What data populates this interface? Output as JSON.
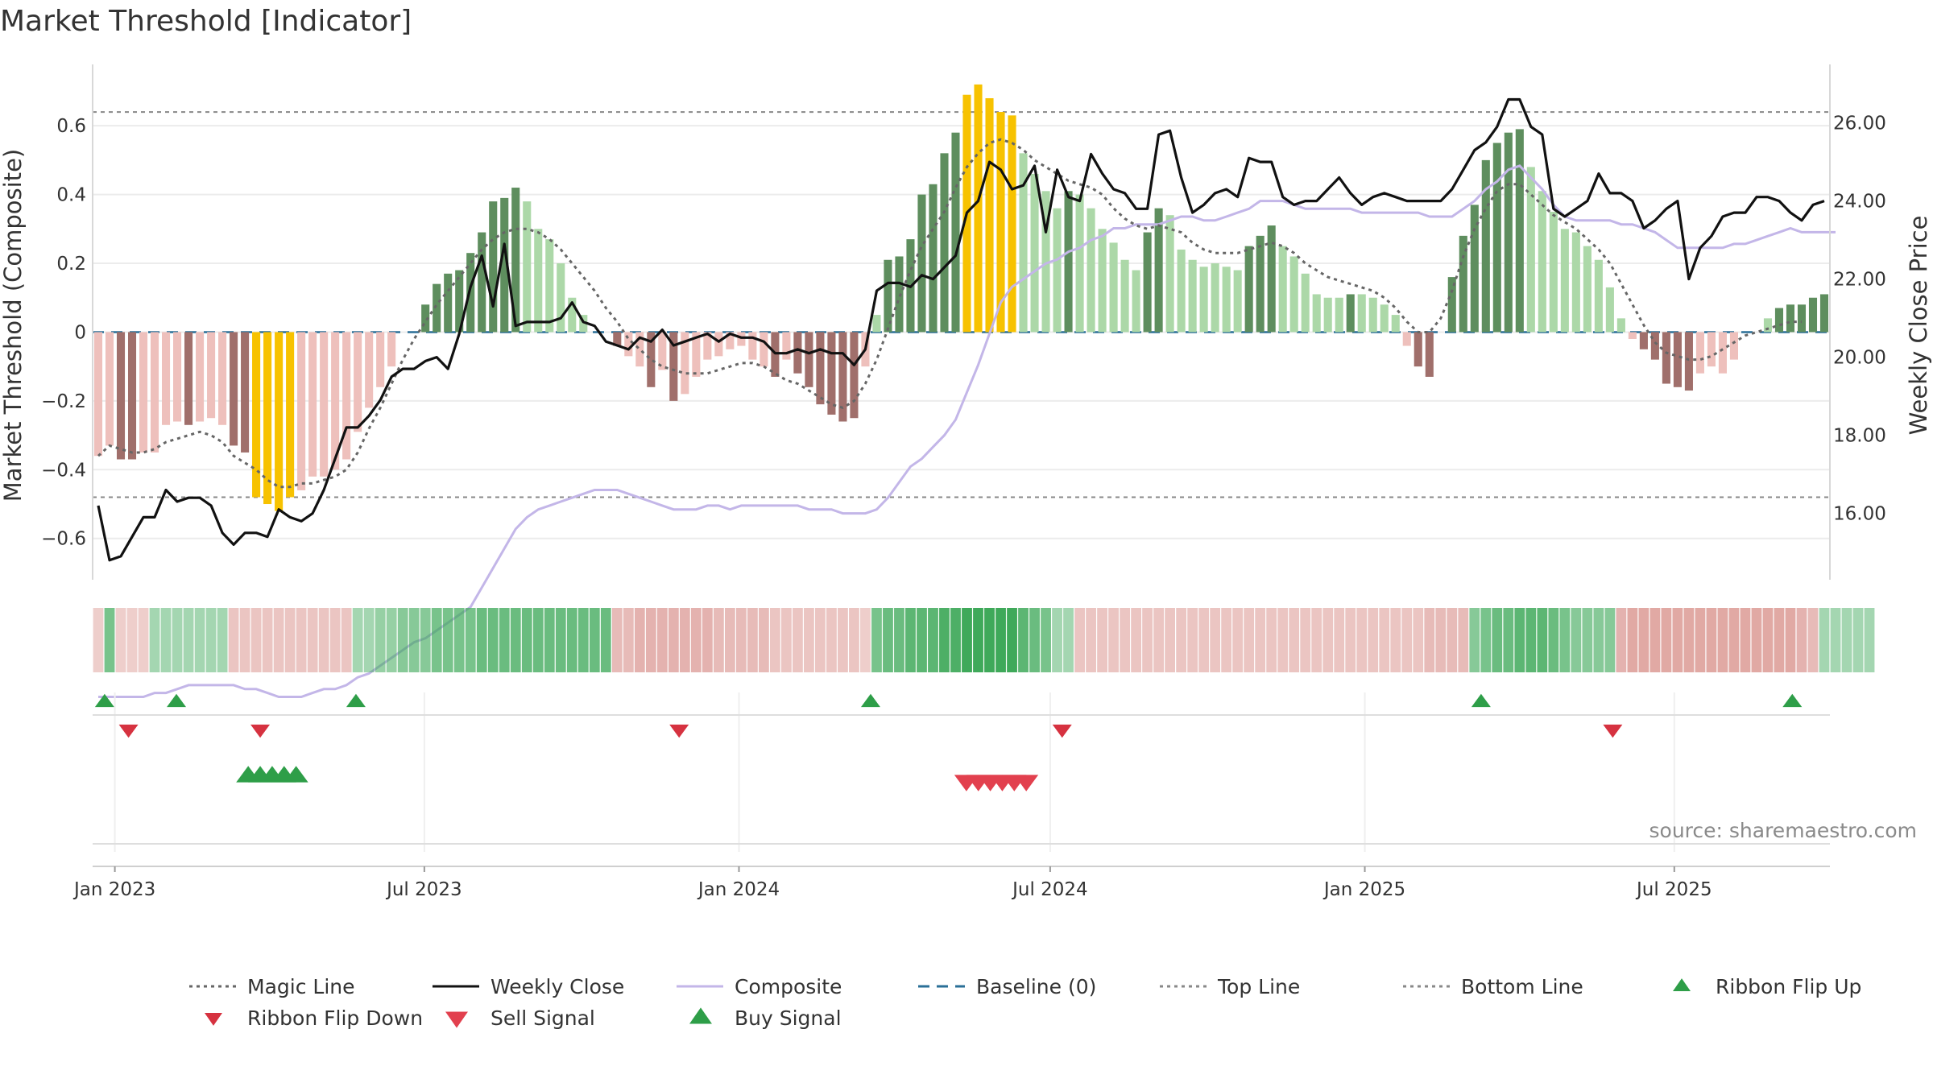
{
  "chart_data": {
    "type": "bar",
    "title": "Market Threshold [Indicator]",
    "ylabel": "Market Threshold (Composite)",
    "y2label": "Weekly Close Price",
    "ylim": [
      -0.72,
      0.79
    ],
    "y2lim": [
      14.3,
      27.6
    ],
    "yticks": [
      0.6,
      0.4,
      0.2,
      0,
      -0.2,
      -0.4,
      -0.6
    ],
    "ytick_labels": [
      "0.6",
      "0.4",
      "0.2",
      "0",
      "−0.2",
      "−0.4",
      "−0.6"
    ],
    "y2ticks": [
      16,
      18,
      20,
      22,
      24,
      26
    ],
    "y2tick_labels": [
      "16.00",
      "18.00",
      "20.00",
      "22.00",
      "24.00",
      "26.00"
    ],
    "x_start": "2022-12-19",
    "x_end": "2025-09-30",
    "xticks": [
      "2023-01-01",
      "2023-07-01",
      "2024-01-01",
      "2024-07-01",
      "2025-01-01",
      "2025-07-01"
    ],
    "xtick_labels": [
      "Jan 2023",
      "Jul 2023",
      "Jan 2024",
      "Jul 2024",
      "Jan 2025",
      "Jul 2025"
    ],
    "top_line": 0.64,
    "bottom_line": -0.48,
    "baseline": 0,
    "grid": true,
    "legend_position": "bottom",
    "colors": {
      "bar_pos_strong": "#5e8e5e",
      "bar_pos_weak": "#acd8a8",
      "bar_neg_strong": "#a06f6b",
      "bar_neg_weak": "#eec0bc",
      "bar_extreme": "#f7c200",
      "weekly_close": "#111111",
      "composite": "#c3b6e8",
      "magic_line": "#666666",
      "baseline": "#2a6f97",
      "ref_lines": "#888888",
      "buy": "#2e9e48",
      "sell": "#d63240",
      "ribbon_green": "#3fa95a",
      "ribbon_red": "#d4847e"
    },
    "composite_bars": [
      -0.36,
      -0.33,
      -0.37,
      -0.37,
      -0.35,
      -0.35,
      -0.27,
      -0.26,
      -0.27,
      -0.26,
      -0.25,
      -0.27,
      -0.33,
      -0.35,
      -0.48,
      -0.5,
      -0.52,
      -0.48,
      -0.46,
      -0.42,
      -0.42,
      -0.4,
      -0.37,
      -0.29,
      -0.22,
      -0.16,
      -0.1,
      0,
      0,
      0.08,
      0.14,
      0.17,
      0.18,
      0.23,
      0.29,
      0.38,
      0.39,
      0.42,
      0.38,
      0.3,
      0.27,
      0.2,
      0.1,
      0.05,
      0,
      0,
      -0.04,
      -0.07,
      -0.1,
      -0.16,
      -0.11,
      -0.2,
      -0.18,
      -0.13,
      -0.08,
      -0.07,
      -0.05,
      -0.04,
      -0.08,
      -0.1,
      -0.13,
      -0.08,
      -0.12,
      -0.16,
      -0.21,
      -0.24,
      -0.26,
      -0.25,
      -0.1,
      0.05,
      0.21,
      0.22,
      0.27,
      0.4,
      0.43,
      0.52,
      0.58,
      0.69,
      0.72,
      0.68,
      0.64,
      0.63,
      0.52,
      0.46,
      0.41,
      0.36,
      0.41,
      0.4,
      0.36,
      0.3,
      0.26,
      0.21,
      0.18,
      0.29,
      0.36,
      0.34,
      0.24,
      0.21,
      0.19,
      0.2,
      0.19,
      0.18,
      0.25,
      0.28,
      0.31,
      0.25,
      0.22,
      0.17,
      0.11,
      0.1,
      0.1,
      0.11,
      0.11,
      0.1,
      0.08,
      0.05,
      -0.04,
      -0.1,
      -0.13,
      0,
      0.16,
      0.28,
      0.37,
      0.5,
      0.55,
      0.58,
      0.59,
      0.48,
      0.41,
      0.35,
      0.3,
      0.29,
      0.25,
      0.21,
      0.13,
      0.04,
      -0.02,
      -0.05,
      -0.08,
      -0.15,
      -0.16,
      -0.17,
      -0.12,
      -0.1,
      -0.12,
      -0.08,
      0,
      0,
      0.04,
      0.07,
      0.08,
      0.08,
      0.1,
      0.11
    ],
    "bar_colors": [
      "bnw",
      "bnw",
      "bns",
      "bns",
      "bnw",
      "bnw",
      "bnw",
      "bnw",
      "bns",
      "bnw",
      "bnw",
      "bnw",
      "bns",
      "bns",
      "bx",
      "bx",
      "bx",
      "bx",
      "bnw",
      "bnw",
      "bnw",
      "bnw",
      "bnw",
      "bnw",
      "bnw",
      "bnw",
      "bnw",
      "bnw",
      "bnw",
      "bps",
      "bps",
      "bps",
      "bps",
      "bps",
      "bps",
      "bps",
      "bps",
      "bps",
      "bpw",
      "bpw",
      "bpw",
      "bpw",
      "bpw",
      "bpw",
      "bpw",
      "bpw",
      "bns",
      "bnw",
      "bnw",
      "bns",
      "bnw",
      "bns",
      "bnw",
      "bnw",
      "bnw",
      "bnw",
      "bnw",
      "bnw",
      "bnw",
      "bnw",
      "bns",
      "bnw",
      "bns",
      "bns",
      "bns",
      "bns",
      "bns",
      "bns",
      "bnw",
      "bpw",
      "bps",
      "bps",
      "bps",
      "bps",
      "bps",
      "bps",
      "bps",
      "bx",
      "bx",
      "bx",
      "bx",
      "bx",
      "bpw",
      "bpw",
      "bpw",
      "bpw",
      "bps",
      "bpw",
      "bpw",
      "bpw",
      "bpw",
      "bpw",
      "bpw",
      "bps",
      "bps",
      "bpw",
      "bpw",
      "bpw",
      "bpw",
      "bpw",
      "bpw",
      "bpw",
      "bps",
      "bps",
      "bps",
      "bpw",
      "bpw",
      "bpw",
      "bpw",
      "bpw",
      "bpw",
      "bps",
      "bpw",
      "bpw",
      "bpw",
      "bpw",
      "bnw",
      "bns",
      "bns",
      "bpw",
      "bps",
      "bps",
      "bps",
      "bps",
      "bps",
      "bps",
      "bps",
      "bpw",
      "bpw",
      "bpw",
      "bpw",
      "bpw",
      "bpw",
      "bpw",
      "bpw",
      "bpw",
      "bnw",
      "bns",
      "bns",
      "bns",
      "bns",
      "bns",
      "bnw",
      "bnw",
      "bnw",
      "bnw",
      "bpw",
      "bpw",
      "bpw",
      "bps",
      "bps",
      "bps",
      "bps",
      "bps"
    ],
    "composite_line": [
      -0.43,
      -0.43,
      -0.43,
      -0.43,
      -0.43,
      -0.42,
      -0.42,
      -0.41,
      -0.4,
      -0.4,
      -0.4,
      -0.4,
      -0.4,
      -0.41,
      -0.41,
      -0.42,
      -0.43,
      -0.43,
      -0.43,
      -0.42,
      -0.41,
      -0.41,
      -0.4,
      -0.38,
      -0.37,
      -0.35,
      -0.33,
      -0.31,
      -0.29,
      -0.28,
      -0.26,
      -0.24,
      -0.22,
      -0.2,
      -0.15,
      -0.1,
      -0.05,
      0.0,
      0.03,
      0.05,
      0.06,
      0.07,
      0.08,
      0.09,
      0.1,
      0.1,
      0.1,
      0.09,
      0.08,
      0.07,
      0.06,
      0.05,
      0.05,
      0.05,
      0.06,
      0.06,
      0.05,
      0.06,
      0.06,
      0.06,
      0.06,
      0.06,
      0.06,
      0.05,
      0.05,
      0.05,
      0.04,
      0.04,
      0.04,
      0.05,
      0.08,
      0.12,
      0.16,
      0.18,
      0.21,
      0.24,
      0.28,
      0.35,
      0.42,
      0.5,
      0.58,
      0.62,
      0.64,
      0.66,
      0.68,
      0.69,
      0.71,
      0.72,
      0.74,
      0.75,
      0.77,
      0.77,
      0.78,
      0.78,
      0.78,
      0.79,
      0.8,
      0.8,
      0.79,
      0.79,
      0.8,
      0.81,
      0.82,
      0.84,
      0.84,
      0.84,
      0.83,
      0.82,
      0.82,
      0.82,
      0.82,
      0.82,
      0.81,
      0.81,
      0.81,
      0.81,
      0.81,
      0.81,
      0.8,
      0.8,
      0.8,
      0.82,
      0.84,
      0.87,
      0.89,
      0.92,
      0.93,
      0.9,
      0.87,
      0.83,
      0.8,
      0.79,
      0.79,
      0.79,
      0.79,
      0.78,
      0.78,
      0.77,
      0.76,
      0.74,
      0.72,
      0.72,
      0.72,
      0.72,
      0.72,
      0.73,
      0.73,
      0.74,
      0.75,
      0.76,
      0.77,
      0.76,
      0.76,
      0.76,
      0.76
    ],
    "weekly_close": [
      16.2,
      14.8,
      14.9,
      15.4,
      15.9,
      15.9,
      16.6,
      16.3,
      16.4,
      16.4,
      16.2,
      15.5,
      15.2,
      15.5,
      15.5,
      15.4,
      16.1,
      15.9,
      15.8,
      16.0,
      16.6,
      17.4,
      18.2,
      18.2,
      18.5,
      18.9,
      19.5,
      19.7,
      19.7,
      19.9,
      20.0,
      19.7,
      20.6,
      21.8,
      22.6,
      21.3,
      22.9,
      20.8,
      20.9,
      20.9,
      20.9,
      21.0,
      21.4,
      20.9,
      20.8,
      20.4,
      20.3,
      20.2,
      20.5,
      20.4,
      20.7,
      20.3,
      20.4,
      20.5,
      20.6,
      20.4,
      20.6,
      20.5,
      20.5,
      20.4,
      20.1,
      20.1,
      20.2,
      20.1,
      20.2,
      20.1,
      20.1,
      19.8,
      20.2,
      21.7,
      21.9,
      21.9,
      21.8,
      22.1,
      22.0,
      22.3,
      22.6,
      23.7,
      24.0,
      25.0,
      24.8,
      24.3,
      24.4,
      24.9,
      23.2,
      24.8,
      24.1,
      24.0,
      25.2,
      24.7,
      24.3,
      24.2,
      23.8,
      23.8,
      25.7,
      25.8,
      24.6,
      23.7,
      23.9,
      24.2,
      24.3,
      24.1,
      25.1,
      25.0,
      25.0,
      24.1,
      23.9,
      24.0,
      24.0,
      24.3,
      24.6,
      24.2,
      23.9,
      24.1,
      24.2,
      24.1,
      24.0,
      24.0,
      24.0,
      24.0,
      24.3,
      24.8,
      25.3,
      25.5,
      25.9,
      26.6,
      26.6,
      25.9,
      25.7,
      23.8,
      23.6,
      23.8,
      24.0,
      24.7,
      24.2,
      24.2,
      24.0,
      23.3,
      23.5,
      23.8,
      24.0,
      22.0,
      22.8,
      23.1,
      23.6,
      23.7,
      23.7,
      24.1,
      24.1,
      24.0,
      23.7,
      23.5,
      23.9,
      24.0
    ],
    "magic_line": [
      -0.36,
      -0.33,
      -0.34,
      -0.35,
      -0.35,
      -0.34,
      -0.32,
      -0.31,
      -0.3,
      -0.29,
      -0.3,
      -0.32,
      -0.36,
      -0.38,
      -0.4,
      -0.43,
      -0.45,
      -0.45,
      -0.44,
      -0.44,
      -0.43,
      -0.42,
      -0.4,
      -0.35,
      -0.28,
      -0.22,
      -0.15,
      -0.08,
      -0.02,
      0.03,
      0.08,
      0.12,
      0.16,
      0.2,
      0.24,
      0.27,
      0.29,
      0.3,
      0.3,
      0.29,
      0.27,
      0.24,
      0.2,
      0.16,
      0.12,
      0.07,
      0.03,
      -0.02,
      -0.05,
      -0.08,
      -0.1,
      -0.11,
      -0.12,
      -0.12,
      -0.12,
      -0.11,
      -0.1,
      -0.09,
      -0.09,
      -0.1,
      -0.12,
      -0.14,
      -0.15,
      -0.17,
      -0.19,
      -0.21,
      -0.22,
      -0.2,
      -0.15,
      -0.08,
      0.01,
      0.1,
      0.18,
      0.25,
      0.3,
      0.35,
      0.42,
      0.48,
      0.52,
      0.55,
      0.56,
      0.55,
      0.53,
      0.5,
      0.48,
      0.46,
      0.44,
      0.43,
      0.42,
      0.4,
      0.36,
      0.33,
      0.31,
      0.3,
      0.31,
      0.3,
      0.29,
      0.26,
      0.24,
      0.23,
      0.23,
      0.23,
      0.24,
      0.25,
      0.26,
      0.25,
      0.23,
      0.2,
      0.18,
      0.16,
      0.15,
      0.14,
      0.13,
      0.12,
      0.1,
      0.07,
      0.03,
      0.0,
      0.0,
      0.04,
      0.12,
      0.22,
      0.3,
      0.36,
      0.41,
      0.43,
      0.43,
      0.4,
      0.37,
      0.34,
      0.32,
      0.3,
      0.27,
      0.24,
      0.2,
      0.14,
      0.08,
      0.02,
      -0.03,
      -0.06,
      -0.07,
      -0.08,
      -0.08,
      -0.07,
      -0.05,
      -0.03,
      -0.01,
      0.0,
      0.01,
      0.02,
      0.03,
      0.03
    ],
    "ribbon_signal": [
      -0.2,
      0.6,
      -0.2,
      -0.2,
      -0.2,
      0.3,
      0.3,
      0.3,
      0.3,
      0.3,
      0.3,
      0.3,
      -0.3,
      -0.3,
      -0.3,
      -0.3,
      -0.3,
      -0.3,
      -0.3,
      -0.3,
      -0.3,
      -0.3,
      -0.3,
      0.3,
      0.3,
      0.4,
      0.4,
      0.5,
      0.5,
      0.5,
      0.6,
      0.6,
      0.6,
      0.6,
      0.7,
      0.7,
      0.7,
      0.7,
      0.7,
      0.7,
      0.7,
      0.7,
      0.7,
      0.7,
      0.7,
      0.7,
      -0.4,
      -0.4,
      -0.5,
      -0.5,
      -0.5,
      -0.5,
      -0.5,
      -0.5,
      -0.5,
      -0.4,
      -0.4,
      -0.4,
      -0.4,
      -0.4,
      -0.3,
      -0.3,
      -0.3,
      -0.3,
      -0.3,
      -0.3,
      -0.3,
      -0.3,
      -0.2,
      0.6,
      0.7,
      0.7,
      0.8,
      0.8,
      0.8,
      0.9,
      0.9,
      1.0,
      1.0,
      1.0,
      1.0,
      1.0,
      0.8,
      0.7,
      0.6,
      0.3,
      0.3,
      -0.3,
      -0.3,
      -0.3,
      -0.3,
      -0.3,
      -0.3,
      -0.3,
      -0.3,
      -0.3,
      -0.3,
      -0.3,
      -0.3,
      -0.3,
      -0.3,
      -0.3,
      -0.3,
      -0.3,
      -0.3,
      -0.3,
      -0.3,
      -0.3,
      -0.3,
      -0.3,
      -0.3,
      -0.3,
      -0.3,
      -0.3,
      -0.3,
      -0.3,
      -0.3,
      -0.3,
      -0.4,
      -0.4,
      -0.4,
      -0.4,
      0.5,
      0.6,
      0.7,
      0.7,
      0.8,
      0.8,
      0.8,
      0.7,
      0.6,
      0.5,
      0.5,
      0.5,
      0.5,
      -0.5,
      -0.6,
      -0.6,
      -0.6,
      -0.6,
      -0.6,
      -0.6,
      -0.6,
      -0.6,
      -0.6,
      -0.6,
      -0.6,
      -0.6,
      -0.6,
      -0.6,
      -0.6,
      -0.5,
      -0.4,
      0.3,
      0.3,
      0.3,
      0.3,
      0.3
    ],
    "ribbon_flip_up": [
      "2022-12-26",
      "2023-02-06",
      "2023-05-22",
      "2024-03-18",
      "2025-03-10",
      "2025-09-08"
    ],
    "ribbon_flip_down": [
      "2023-01-09",
      "2023-03-27",
      "2023-11-27",
      "2024-07-08",
      "2025-05-26"
    ],
    "buy_signals": [
      "2023-03-20",
      "2023-03-27",
      "2023-04-03",
      "2023-04-10",
      "2023-04-17"
    ],
    "sell_signals": [
      "2024-05-13",
      "2024-05-20",
      "2024-05-27",
      "2024-06-03",
      "2024-06-10",
      "2024-06-17"
    ],
    "legend": [
      {
        "label": "Magic Line",
        "style": "dotted-line",
        "color": "#666666"
      },
      {
        "label": "Weekly Close",
        "style": "line",
        "color": "#111111"
      },
      {
        "label": "Composite",
        "style": "line",
        "color": "#c3b6e8"
      },
      {
        "label": "Baseline (0)",
        "style": "dashed-line",
        "color": "#2a6f97"
      },
      {
        "label": "Top Line",
        "style": "dotted-line",
        "color": "#888888"
      },
      {
        "label": "Bottom Line",
        "style": "dotted-line",
        "color": "#888888"
      },
      {
        "label": "Ribbon Flip Up",
        "style": "triangle-up",
        "color": "#2e9e48"
      },
      {
        "label": "Ribbon Flip Down",
        "style": "triangle-down",
        "color": "#d63240"
      },
      {
        "label": "Sell Signal",
        "style": "triangle-down",
        "color": "#e2404e"
      },
      {
        "label": "Buy Signal",
        "style": "triangle-up",
        "color": "#2e9e48"
      }
    ],
    "source": "source: sharemaestro.com"
  }
}
